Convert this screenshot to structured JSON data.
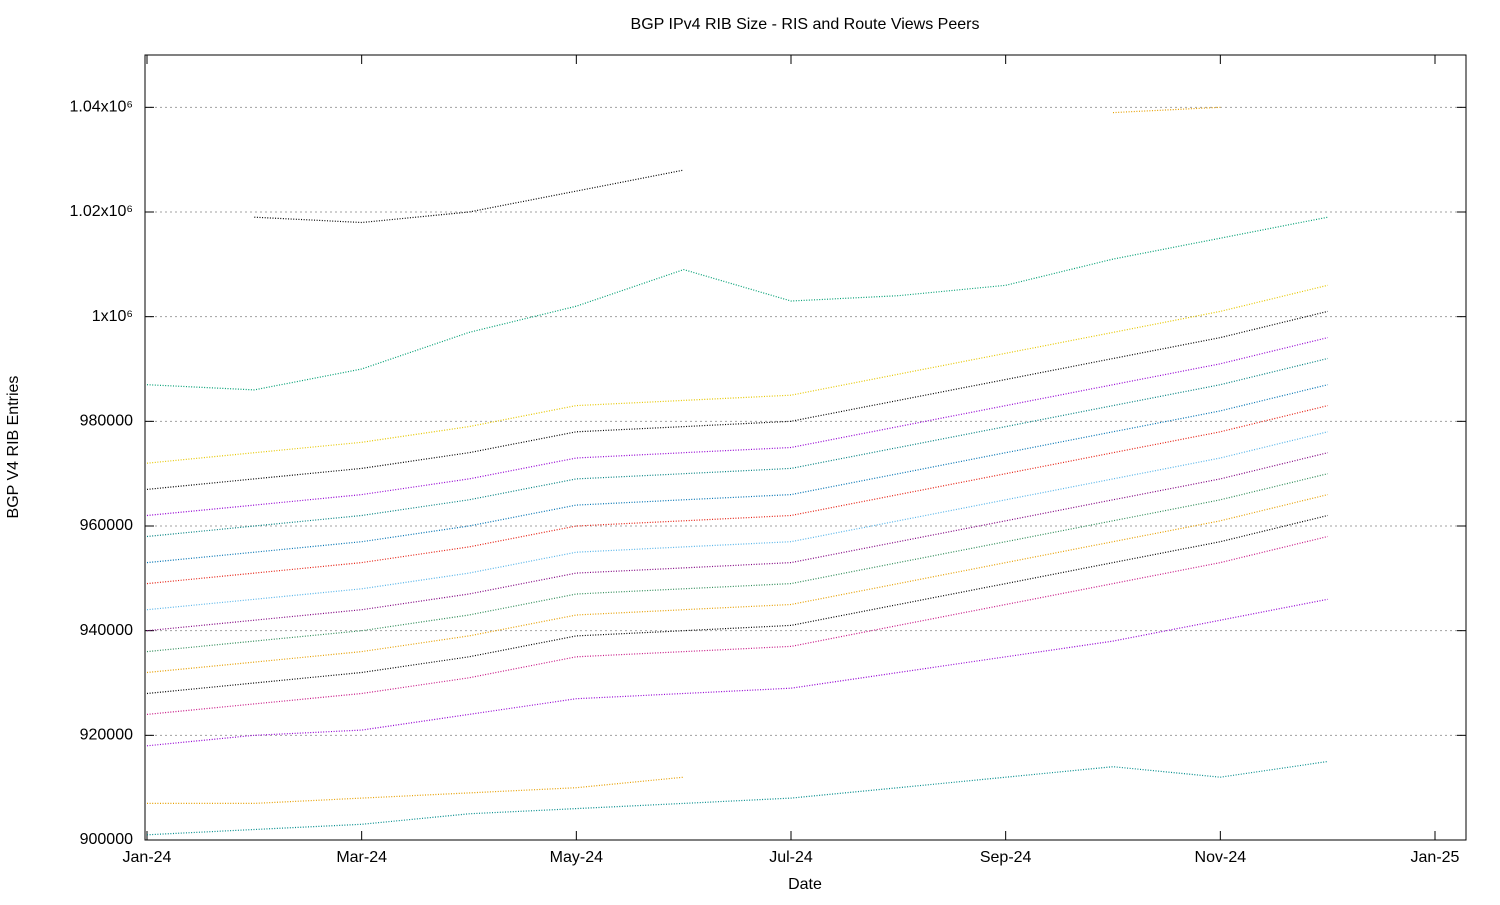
{
  "chart_data": {
    "type": "line",
    "title": "BGP IPv4 RIB Size - RIS and Route Views Peers",
    "x_label": "Date",
    "y_label": "BGP V4 RIB Entries",
    "x": [
      "2024-01",
      "2024-02",
      "2024-03",
      "2024-04",
      "2024-05",
      "2024-06",
      "2024-07",
      "2024-08",
      "2024-09",
      "2024-10",
      "2024-11",
      "2024-12"
    ],
    "xlim": [
      "2024-01",
      "2025-01"
    ],
    "xticks": [
      {
        "value": "2024-01",
        "label": "Jan-24"
      },
      {
        "value": "2024-03",
        "label": "Mar-24"
      },
      {
        "value": "2024-05",
        "label": "May-24"
      },
      {
        "value": "2024-07",
        "label": "Jul-24"
      },
      {
        "value": "2024-09",
        "label": "Sep-24"
      },
      {
        "value": "2024-11",
        "label": "Nov-24"
      },
      {
        "value": "2025-01",
        "label": "Jan-25"
      }
    ],
    "ylim": [
      900000,
      1050000
    ],
    "yticks": [
      900000,
      920000,
      940000,
      960000,
      980000,
      {
        "value": 1000000,
        "label": "1x10⁶"
      },
      {
        "value": 1020000,
        "label": "1.02x10⁶"
      },
      {
        "value": 1040000,
        "label": "1.04x10⁶"
      }
    ],
    "grid": true,
    "series": [
      {
        "color": "#009e73",
        "values": [
          987000,
          986000,
          990000,
          997000,
          1002000,
          1009000,
          1003000,
          1004000,
          1006000,
          1011000,
          1015000,
          1019000
        ]
      },
      {
        "color": "#000000",
        "values": [
          null,
          1019000,
          1018000,
          1020000,
          1024000,
          1028000,
          null,
          null,
          null,
          null,
          null,
          null
        ]
      },
      {
        "color": "#e69f00",
        "values": [
          null,
          null,
          null,
          null,
          null,
          null,
          null,
          null,
          null,
          1039000,
          1040000,
          null
        ]
      },
      {
        "color": "#e6c700",
        "values": [
          972000,
          974000,
          976000,
          979000,
          983000,
          984000,
          985000,
          989000,
          993000,
          997000,
          1001000,
          1006000
        ]
      },
      {
        "color": "#000000",
        "values": [
          967000,
          969000,
          971000,
          974000,
          978000,
          979000,
          980000,
          984000,
          988000,
          992000,
          996000,
          1001000
        ]
      },
      {
        "color": "#9400d3",
        "values": [
          962000,
          964000,
          966000,
          969000,
          973000,
          974000,
          975000,
          979000,
          983000,
          987000,
          991000,
          996000
        ]
      },
      {
        "color": "#008080",
        "values": [
          958000,
          960000,
          962000,
          965000,
          969000,
          970000,
          971000,
          975000,
          979000,
          983000,
          987000,
          992000
        ]
      },
      {
        "color": "#0072b2",
        "values": [
          953000,
          955000,
          957000,
          960000,
          964000,
          965000,
          966000,
          970000,
          974000,
          978000,
          982000,
          987000
        ]
      },
      {
        "color": "#e51e10",
        "values": [
          949000,
          951000,
          953000,
          956000,
          960000,
          961000,
          962000,
          966000,
          970000,
          974000,
          978000,
          983000
        ]
      },
      {
        "color": "#56b4e9",
        "values": [
          944000,
          946000,
          948000,
          951000,
          955000,
          956000,
          957000,
          961000,
          965000,
          969000,
          973000,
          978000
        ]
      },
      {
        "color": "#800080",
        "values": [
          940000,
          942000,
          944000,
          947000,
          951000,
          952000,
          953000,
          957000,
          961000,
          965000,
          969000,
          974000
        ]
      },
      {
        "color": "#2e8b57",
        "values": [
          936000,
          938000,
          940000,
          943000,
          947000,
          948000,
          949000,
          953000,
          957000,
          961000,
          965000,
          970000
        ]
      },
      {
        "color": "#e69f00",
        "values": [
          932000,
          934000,
          936000,
          939000,
          943000,
          944000,
          945000,
          949000,
          953000,
          957000,
          961000,
          966000
        ]
      },
      {
        "color": "#000000",
        "values": [
          928000,
          930000,
          932000,
          935000,
          939000,
          940000,
          941000,
          945000,
          949000,
          953000,
          957000,
          962000
        ]
      },
      {
        "color": "#c71585",
        "values": [
          924000,
          926000,
          928000,
          931000,
          935000,
          936000,
          937000,
          941000,
          945000,
          949000,
          953000,
          958000
        ]
      },
      {
        "color": "#9400d3",
        "values": [
          918000,
          920000,
          921000,
          924000,
          927000,
          928000,
          929000,
          932000,
          935000,
          938000,
          942000,
          946000
        ]
      },
      {
        "color": "#e69f00",
        "values": [
          907000,
          907000,
          908000,
          909000,
          910000,
          912000,
          null,
          null,
          null,
          null,
          null,
          null
        ]
      },
      {
        "color": "#008b8b",
        "values": [
          901000,
          902000,
          903000,
          905000,
          906000,
          907000,
          908000,
          910000,
          912000,
          914000,
          912000,
          915000
        ]
      }
    ]
  }
}
